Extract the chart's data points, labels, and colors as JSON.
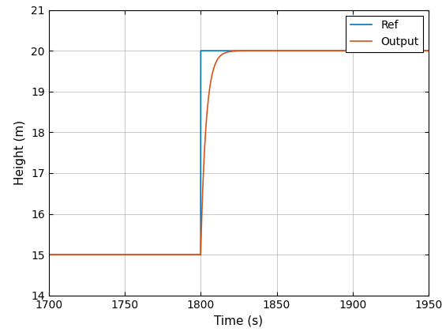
{
  "title": "",
  "xlabel": "Time (s)",
  "ylabel": "Height (m)",
  "xlim": [
    1700,
    1950
  ],
  "ylim": [
    14,
    21
  ],
  "xticks": [
    1700,
    1750,
    1800,
    1850,
    1900,
    1950
  ],
  "yticks": [
    14,
    15,
    16,
    17,
    18,
    19,
    20,
    21
  ],
  "ref_color": "#0072BD",
  "output_color": "#D95319",
  "ref_label": "Ref",
  "output_label": "Output",
  "step_time": 1800,
  "y_initial": 15,
  "y_final": 20,
  "time_constant": 3.5,
  "t_start": 1700,
  "t_end": 1950,
  "background_color": "#FFFFFF",
  "grid_color": "#B0B0B0",
  "line_width": 1.2,
  "axis_label_fontsize": 11,
  "tick_fontsize": 10,
  "legend_fontsize": 10
}
